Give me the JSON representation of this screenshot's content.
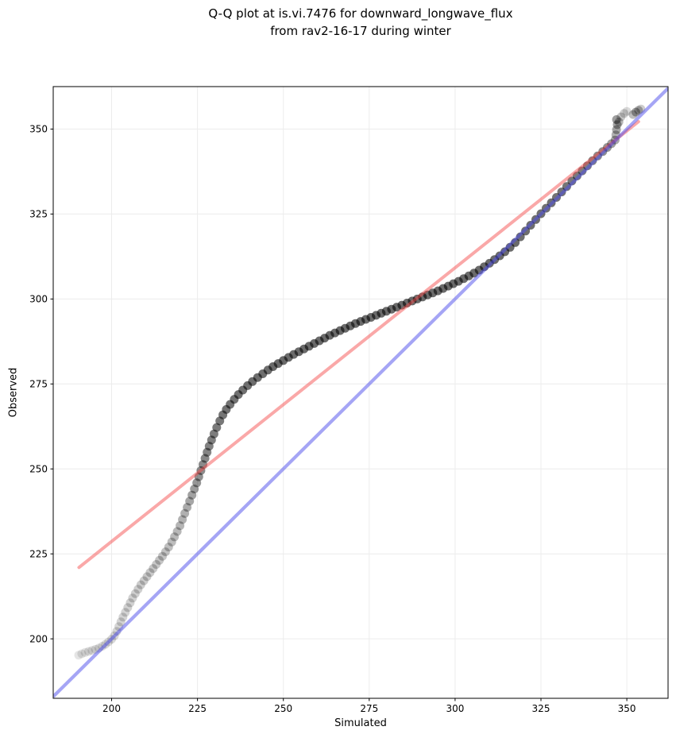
{
  "title": {
    "lines": [
      "Q-Q plot at is.vi.7476 for downward_longwave_flux",
      "from rav2-16-17 during winter"
    ]
  },
  "chart_data": {
    "type": "scatter",
    "title": "Q-Q plot at is.vi.7476 for downward_longwave_flux from rav2-16-17 during winter",
    "xlabel": "Simulated",
    "ylabel": "Observed",
    "xlim": [
      183,
      362
    ],
    "ylim": [
      182.5,
      362.5
    ],
    "xticks": [
      200,
      225,
      250,
      275,
      300,
      325,
      350
    ],
    "yticks": [
      200,
      225,
      250,
      275,
      300,
      325,
      350
    ],
    "grid": true,
    "legend": "none",
    "colors": {
      "identity_line": "rgba(75,75,235,0.5)",
      "fit_line": "rgba(244,70,70,0.47)",
      "point": "#000000",
      "grid": "#ececec",
      "spine": "#000000",
      "tick_label": "#000000"
    },
    "identity_line": {
      "x": [
        183,
        362
      ],
      "y": [
        183,
        362
      ]
    },
    "fit_line": {
      "x": [
        190.5,
        353.4
      ],
      "y": [
        221.0,
        352.2
      ]
    },
    "point_radius_px": 5.5,
    "points": [
      [
        190.4,
        195.2,
        0.1
      ],
      [
        191.3,
        195.6,
        0.11
      ],
      [
        192.3,
        196.0,
        0.11
      ],
      [
        193.3,
        196.3,
        0.12
      ],
      [
        194.3,
        196.6,
        0.12
      ],
      [
        195.3,
        196.9,
        0.13
      ],
      [
        196.3,
        197.3,
        0.13
      ],
      [
        197.3,
        197.8,
        0.13
      ],
      [
        198.2,
        198.4,
        0.14
      ],
      [
        199.1,
        199.1,
        0.14
      ],
      [
        200.0,
        199.9,
        0.15
      ],
      [
        200.8,
        200.9,
        0.15
      ],
      [
        201.5,
        202.2,
        0.16
      ],
      [
        202.1,
        203.6,
        0.16
      ],
      [
        202.7,
        205.0,
        0.17
      ],
      [
        203.3,
        206.4,
        0.17
      ],
      [
        204.0,
        207.8,
        0.17
      ],
      [
        204.7,
        209.2,
        0.18
      ],
      [
        205.4,
        210.6,
        0.18
      ],
      [
        206.1,
        212.0,
        0.18
      ],
      [
        206.9,
        213.3,
        0.19
      ],
      [
        207.7,
        214.6,
        0.19
      ],
      [
        208.5,
        215.9,
        0.2
      ],
      [
        209.4,
        217.1,
        0.2
      ],
      [
        210.3,
        218.3,
        0.21
      ],
      [
        211.2,
        219.5,
        0.21
      ],
      [
        212.1,
        220.7,
        0.22
      ],
      [
        213.0,
        221.9,
        0.22
      ],
      [
        213.9,
        223.1,
        0.23
      ],
      [
        214.8,
        224.3,
        0.23
      ],
      [
        215.7,
        225.6,
        0.24
      ],
      [
        216.6,
        227.0,
        0.25
      ],
      [
        217.5,
        228.5,
        0.26
      ],
      [
        218.3,
        230.0,
        0.27
      ],
      [
        219.1,
        231.6,
        0.28
      ],
      [
        219.9,
        233.3,
        0.29
      ],
      [
        220.6,
        235.1,
        0.3
      ],
      [
        221.3,
        236.9,
        0.31
      ],
      [
        222.0,
        238.7,
        0.33
      ],
      [
        222.7,
        240.5,
        0.35
      ],
      [
        223.4,
        242.3,
        0.37
      ],
      [
        224.1,
        244.1,
        0.39
      ],
      [
        224.8,
        245.9,
        0.41
      ],
      [
        225.4,
        247.7,
        0.43
      ],
      [
        226.0,
        249.5,
        0.45
      ],
      [
        226.6,
        251.3,
        0.46
      ],
      [
        227.2,
        253.1,
        0.47
      ],
      [
        227.8,
        254.9,
        0.48
      ],
      [
        228.4,
        256.7,
        0.49
      ],
      [
        229.1,
        258.5,
        0.5
      ],
      [
        229.8,
        260.3,
        0.51
      ],
      [
        230.6,
        262.2,
        0.52
      ],
      [
        231.5,
        264.1,
        0.53
      ],
      [
        232.4,
        265.9,
        0.54
      ],
      [
        233.4,
        267.5,
        0.55
      ],
      [
        234.5,
        269.0,
        0.55
      ],
      [
        235.7,
        270.5,
        0.55
      ],
      [
        236.9,
        271.9,
        0.56
      ],
      [
        238.2,
        273.2,
        0.56
      ],
      [
        239.6,
        274.5,
        0.56
      ],
      [
        241.0,
        275.7,
        0.57
      ],
      [
        242.5,
        276.9,
        0.57
      ],
      [
        244.0,
        278.0,
        0.57
      ],
      [
        245.5,
        279.1,
        0.57
      ],
      [
        247.0,
        280.1,
        0.58
      ],
      [
        248.5,
        281.0,
        0.58
      ],
      [
        250.0,
        281.9,
        0.58
      ],
      [
        251.5,
        282.8,
        0.58
      ],
      [
        253.0,
        283.7,
        0.58
      ],
      [
        254.5,
        284.5,
        0.58
      ],
      [
        256.0,
        285.3,
        0.58
      ],
      [
        257.5,
        286.1,
        0.58
      ],
      [
        259.0,
        286.9,
        0.58
      ],
      [
        260.5,
        287.7,
        0.58
      ],
      [
        262.0,
        288.5,
        0.58
      ],
      [
        263.5,
        289.3,
        0.58
      ],
      [
        265.0,
        290.0,
        0.58
      ],
      [
        266.5,
        290.7,
        0.58
      ],
      [
        268.0,
        291.4,
        0.58
      ],
      [
        269.5,
        292.1,
        0.58
      ],
      [
        271.0,
        292.8,
        0.58
      ],
      [
        272.5,
        293.4,
        0.58
      ],
      [
        274.0,
        294.0,
        0.58
      ],
      [
        275.5,
        294.6,
        0.58
      ],
      [
        277.0,
        295.2,
        0.58
      ],
      [
        278.5,
        295.8,
        0.58
      ],
      [
        280.0,
        296.4,
        0.58
      ],
      [
        281.5,
        297.0,
        0.58
      ],
      [
        283.0,
        297.6,
        0.58
      ],
      [
        284.5,
        298.2,
        0.58
      ],
      [
        286.0,
        298.8,
        0.58
      ],
      [
        287.5,
        299.4,
        0.58
      ],
      [
        289.0,
        300.0,
        0.58
      ],
      [
        290.5,
        300.6,
        0.58
      ],
      [
        292.0,
        301.2,
        0.58
      ],
      [
        293.5,
        301.8,
        0.58
      ],
      [
        295.0,
        302.4,
        0.58
      ],
      [
        296.5,
        303.1,
        0.58
      ],
      [
        298.0,
        303.8,
        0.58
      ],
      [
        299.5,
        304.5,
        0.58
      ],
      [
        301.0,
        305.2,
        0.58
      ],
      [
        302.5,
        306.0,
        0.58
      ],
      [
        304.0,
        306.8,
        0.58
      ],
      [
        305.5,
        307.6,
        0.58
      ],
      [
        307.0,
        308.5,
        0.58
      ],
      [
        308.5,
        309.5,
        0.58
      ],
      [
        310.0,
        310.5,
        0.58
      ],
      [
        311.5,
        311.6,
        0.58
      ],
      [
        313.0,
        312.7,
        0.58
      ],
      [
        314.5,
        313.9,
        0.58
      ],
      [
        316.0,
        315.2,
        0.58
      ],
      [
        317.5,
        316.6,
        0.58
      ],
      [
        319.0,
        318.3,
        0.57
      ],
      [
        320.5,
        320.0,
        0.57
      ],
      [
        322.0,
        321.7,
        0.57
      ],
      [
        323.5,
        323.4,
        0.57
      ],
      [
        325.0,
        325.1,
        0.56
      ],
      [
        326.5,
        326.7,
        0.56
      ],
      [
        328.0,
        328.3,
        0.56
      ],
      [
        329.5,
        329.9,
        0.55
      ],
      [
        331.0,
        331.5,
        0.55
      ],
      [
        332.5,
        333.1,
        0.54
      ],
      [
        334.0,
        334.7,
        0.53
      ],
      [
        335.5,
        336.2,
        0.52
      ],
      [
        337.0,
        337.7,
        0.51
      ],
      [
        338.5,
        339.2,
        0.5
      ],
      [
        340.0,
        340.7,
        0.48
      ],
      [
        341.5,
        342.1,
        0.46
      ],
      [
        343.0,
        343.4,
        0.44
      ],
      [
        344.3,
        344.6,
        0.42
      ],
      [
        345.5,
        345.7,
        0.38
      ],
      [
        346.6,
        346.8,
        0.34
      ],
      [
        346.8,
        348.3,
        0.3
      ],
      [
        347.0,
        349.8,
        0.34
      ],
      [
        347.2,
        351.3,
        0.36
      ],
      [
        347.0,
        352.8,
        0.38
      ],
      [
        347.7,
        352.1,
        0.28
      ],
      [
        348.3,
        353.6,
        0.22
      ],
      [
        349.2,
        354.6,
        0.18
      ],
      [
        350.0,
        355.2,
        0.14
      ],
      [
        351.8,
        354.3,
        0.26
      ],
      [
        352.6,
        355.0,
        0.34
      ],
      [
        353.4,
        355.5,
        0.28
      ],
      [
        354.1,
        355.9,
        0.2
      ]
    ]
  }
}
